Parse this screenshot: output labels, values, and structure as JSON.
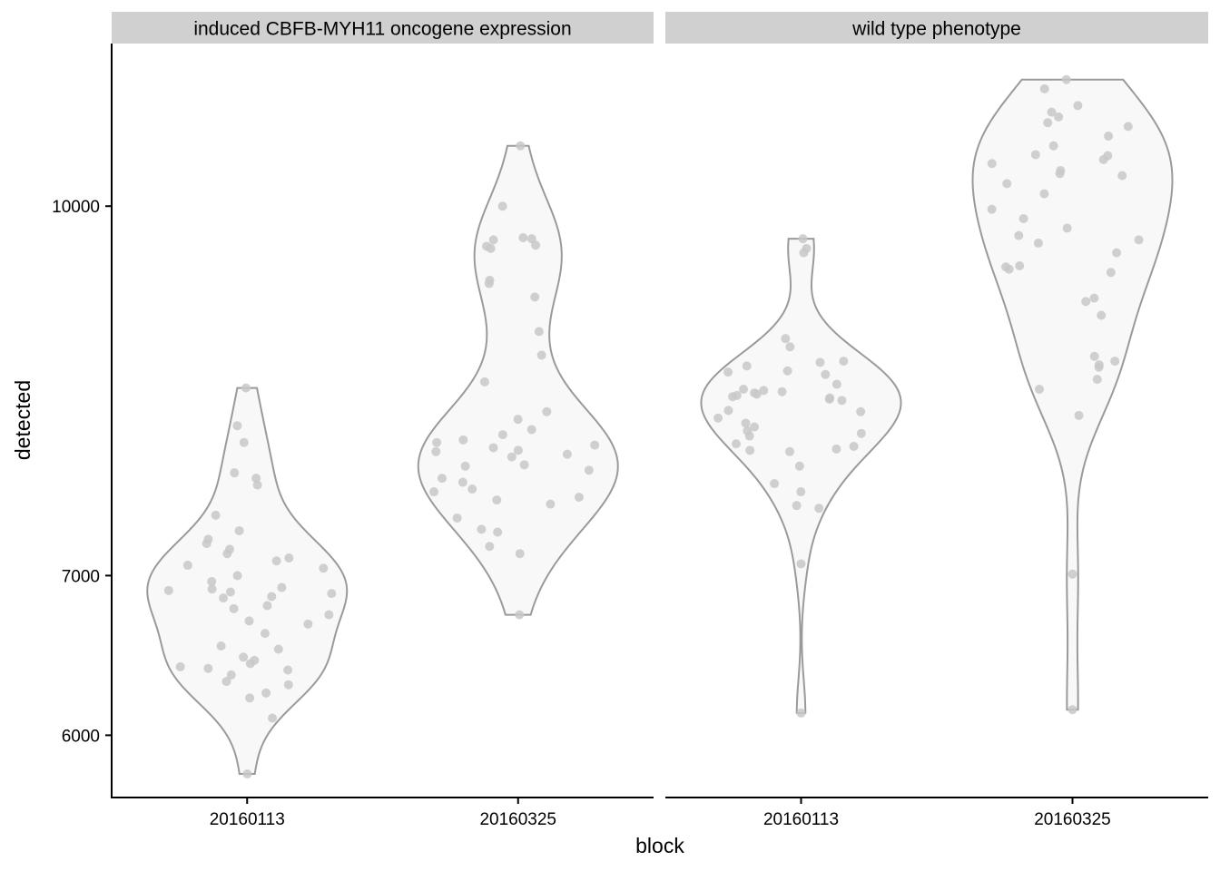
{
  "chart_data": {
    "type": "violin",
    "xlabel": "block",
    "ylabel": "detected",
    "y_scale": "log10",
    "yticks": [
      6000,
      7000,
      10000
    ],
    "ylim": [
      5650,
      11700
    ],
    "categories": [
      "20160113",
      "20160325"
    ],
    "panels": [
      {
        "label": "induced CBFB-MYH11 oncogene expression",
        "groups": [
          {
            "category": "20160113",
            "points": [
              5780,
              6100,
              6220,
              6250,
              6300,
              6320,
              6360,
              6390,
              6400,
              6410,
              6430,
              6450,
              6470,
              6520,
              6540,
              6620,
              6680,
              6700,
              6740,
              6780,
              6800,
              6850,
              6860,
              6880,
              6890,
              6900,
              6910,
              6920,
              6960,
              7000,
              7050,
              7070,
              7100,
              7120,
              7150,
              7180,
              7220,
              7250,
              7310,
              7420,
              7640,
              7690,
              7730,
              7960,
              8090,
              8390
            ]
          },
          {
            "category": "20160325",
            "points": [
              6740,
              7150,
              7200,
              7300,
              7320,
              7400,
              7500,
              7530,
              7550,
              7590,
              7610,
              7660,
              7690,
              7750,
              7780,
              7790,
              7850,
              7870,
              7890,
              7900,
              7920,
              7940,
              7960,
              7980,
              8020,
              8060,
              8140,
              8200,
              8440,
              8660,
              8860,
              9160,
              9280,
              9310,
              9600,
              9620,
              9630,
              9680,
              9690,
              9700,
              10000,
              10600
            ]
          }
        ]
      },
      {
        "label": "wild type phenotype",
        "groups": [
          {
            "category": "20160113",
            "points": [
              6130,
              7080,
              7470,
              7490,
              7590,
              7650,
              7780,
              7890,
              7900,
              7910,
              7930,
              7950,
              8010,
              8030,
              8050,
              8080,
              8110,
              8150,
              8200,
              8210,
              8290,
              8300,
              8310,
              8320,
              8330,
              8340,
              8350,
              8360,
              8370,
              8380,
              8420,
              8500,
              8520,
              8530,
              8570,
              8600,
              8610,
              8730,
              8800,
              9560,
              9600,
              9690
            ]
          },
          {
            "category": "20160325",
            "points": [
              6150,
              7010,
              8170,
              8380,
              8460,
              8560,
              8580,
              8610,
              8650,
              9000,
              9120,
              9150,
              9380,
              9410,
              9430,
              9440,
              9560,
              9650,
              9680,
              9720,
              9790,
              9880,
              9970,
              10120,
              10220,
              10300,
              10320,
              10350,
              10420,
              10460,
              10500,
              10510,
              10600,
              10700,
              10800,
              10840,
              10900,
              10950,
              11020,
              11200,
              11300
            ]
          }
        ]
      }
    ]
  }
}
